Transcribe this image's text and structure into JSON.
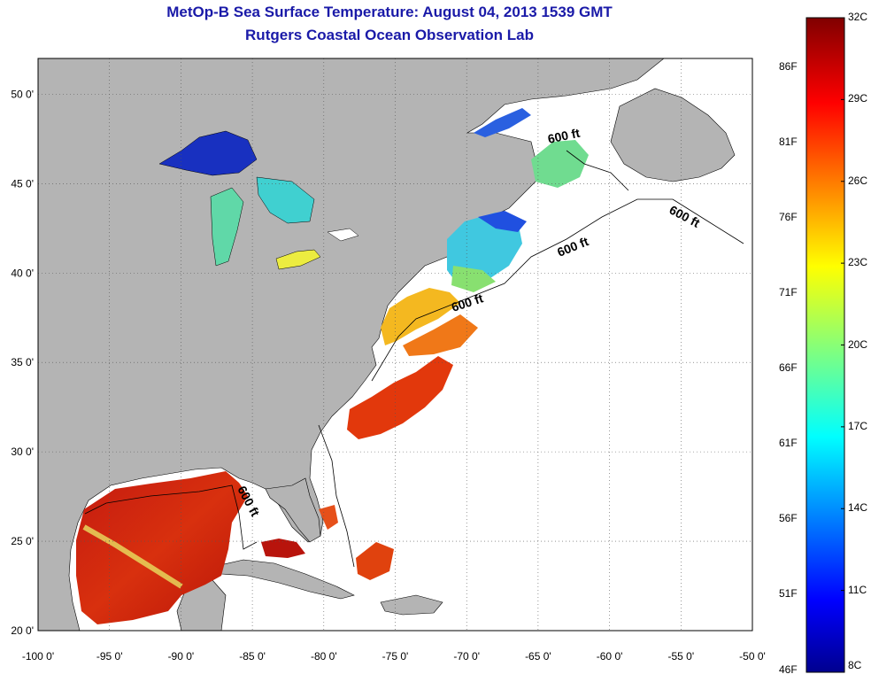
{
  "header": {
    "title": "MetOp-B Sea Surface Temperature:  August 04, 2013 1539 GMT",
    "subtitle": "Rutgers Coastal Ocean Observation Lab"
  },
  "map": {
    "lon_range": [
      -100,
      -50
    ],
    "lat_range": [
      20,
      52
    ],
    "lon_ticks": [
      "-100 0'",
      "-95 0'",
      "-90 0'",
      "-85 0'",
      "-80 0'",
      "-75 0'",
      "-70 0'",
      "-65 0'",
      "-60 0'",
      "-55 0'",
      "-50 0'"
    ],
    "lat_ticks": [
      "20 0'",
      "25 0'",
      "30 0'",
      "35 0'",
      "40 0'",
      "45 0'",
      "50 0'"
    ],
    "contour_labels": [
      "600 ft",
      "600 ft",
      "600 ft",
      "600 ft",
      "600 ft"
    ],
    "colors": {
      "land": "#b4b4b4",
      "ocean_nodata": "#ffffff",
      "gridline": "#555555"
    }
  },
  "colorbar": {
    "celsius_labels": [
      "32C",
      "29C",
      "26C",
      "23C",
      "20C",
      "17C",
      "14C",
      "11C",
      "8C"
    ],
    "fahrenheit_labels": [
      "86F",
      "81F",
      "76F",
      "71F",
      "66F",
      "61F",
      "56F",
      "51F",
      "46F"
    ],
    "range_c": [
      8,
      32
    ],
    "colormap": "jet"
  }
}
